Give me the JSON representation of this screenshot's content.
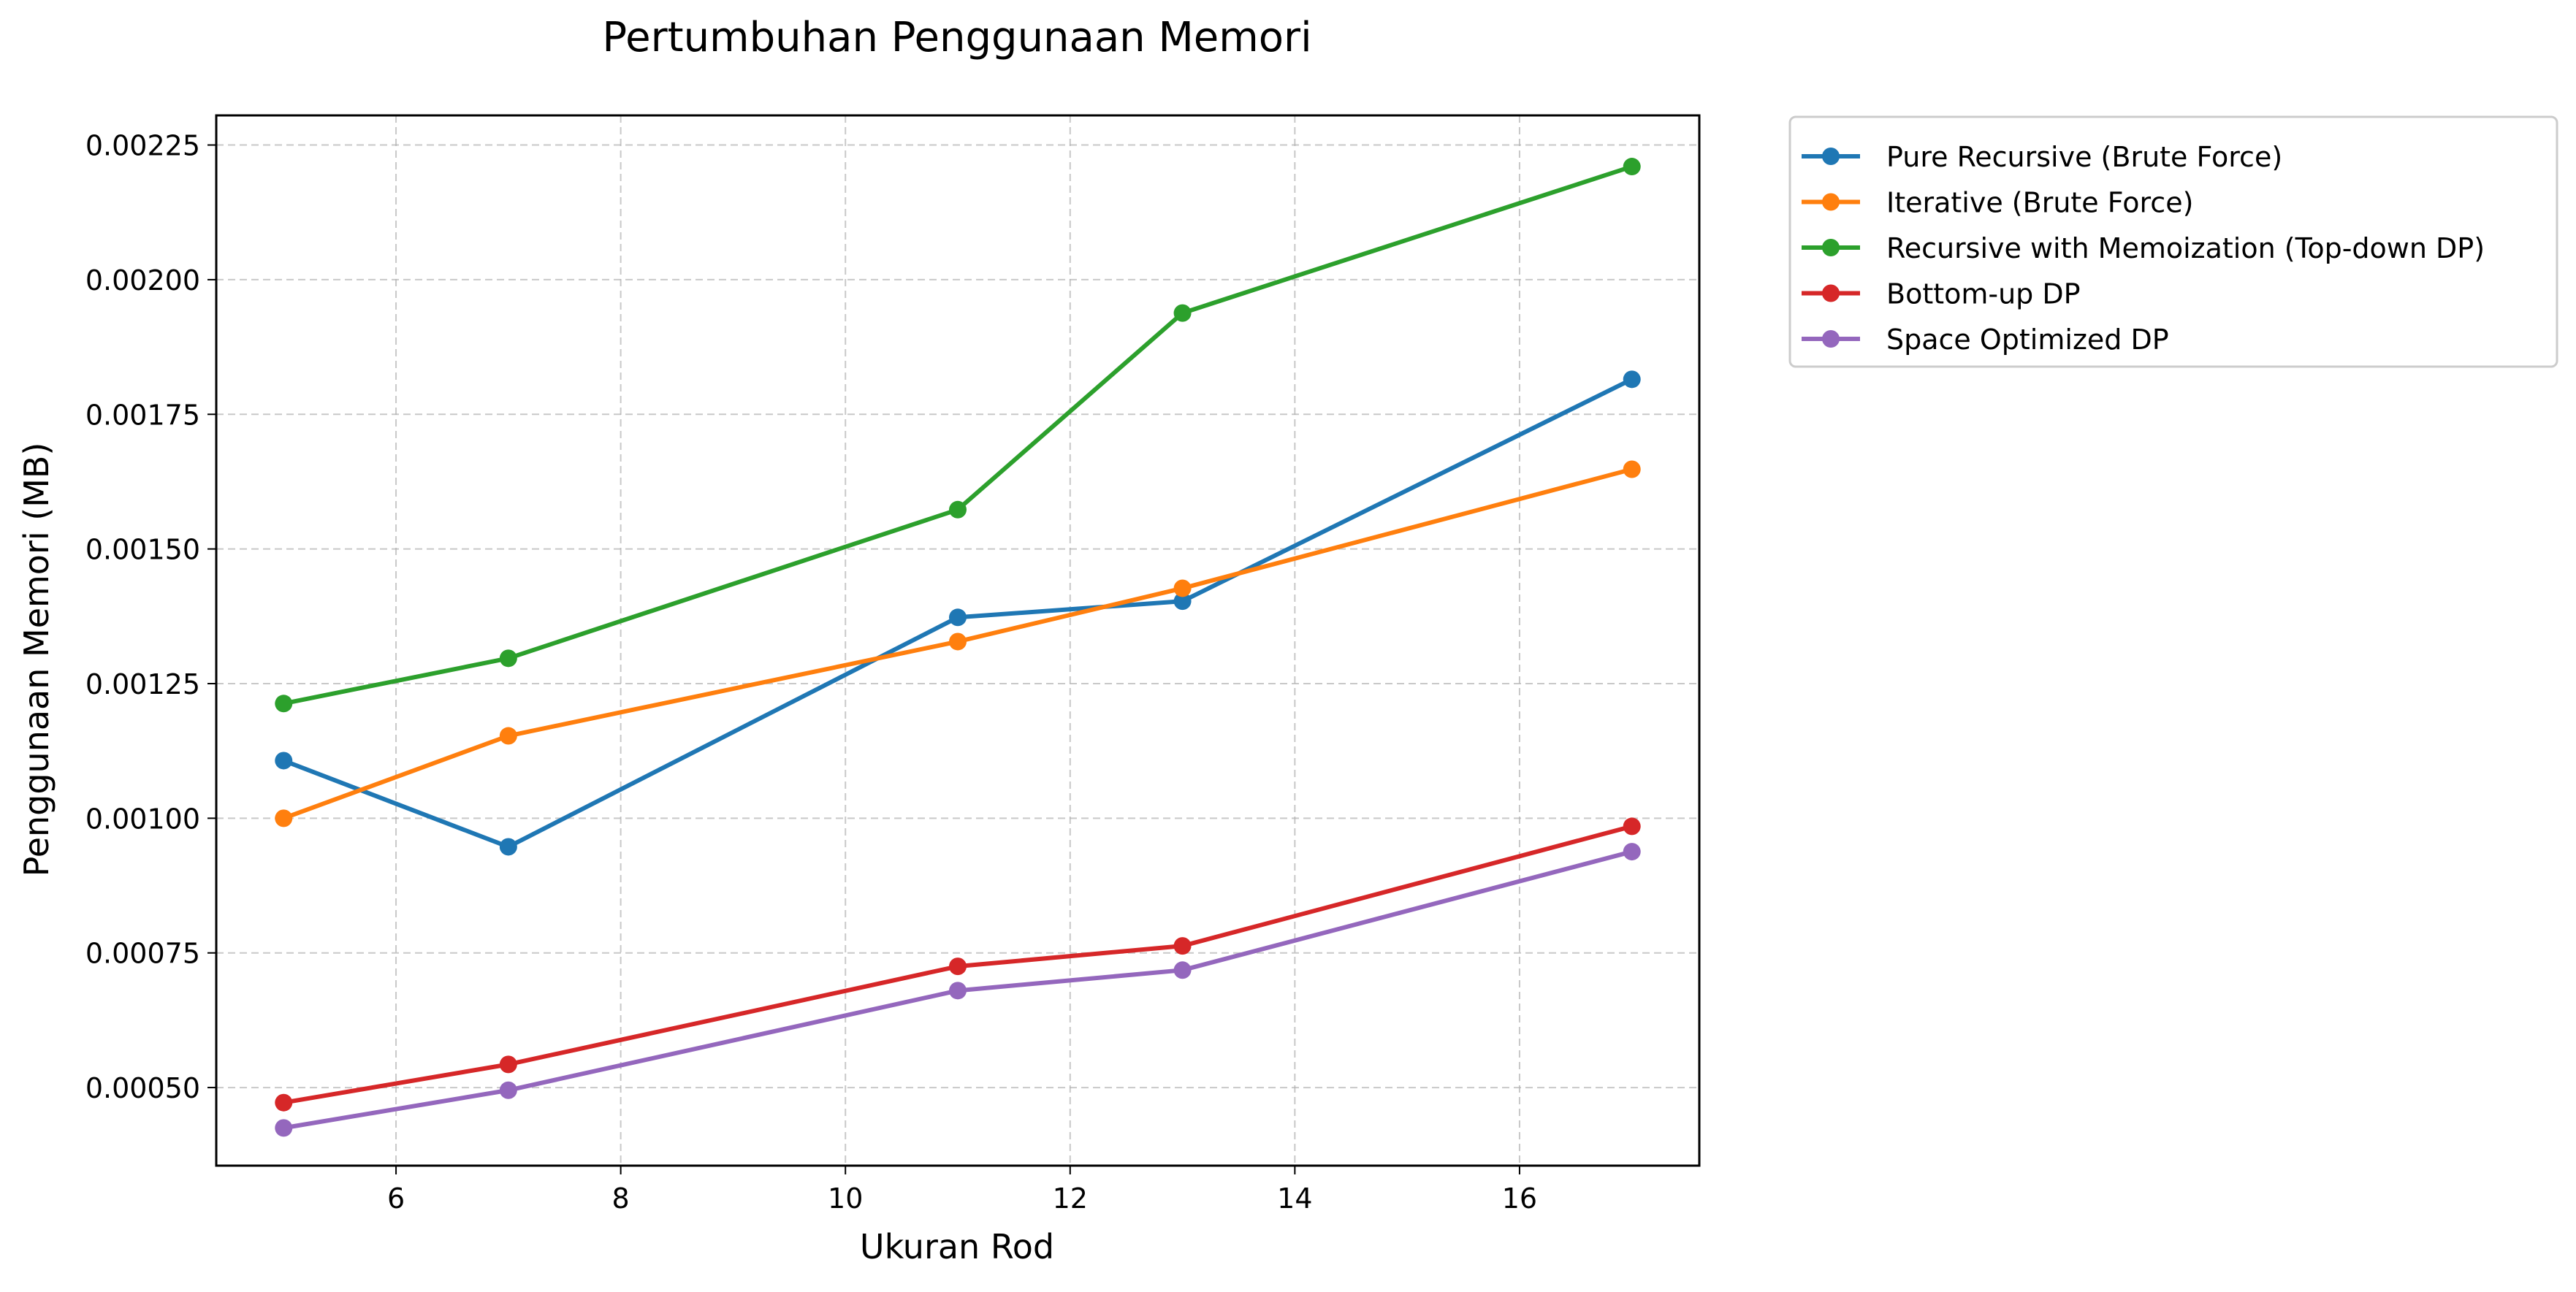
{
  "chart_data": {
    "type": "line",
    "title": "Pertumbuhan Penggunaan Memori",
    "xlabel": "Ukuran Rod",
    "ylabel": "Penggunaan Memori (MB)",
    "x": [
      5,
      7,
      11,
      13,
      17
    ],
    "xlim": [
      4.4,
      17.6
    ],
    "ylim": [
      0.000355,
      0.002305
    ],
    "xticks": [
      6,
      8,
      10,
      12,
      14,
      16
    ],
    "xtick_labels": [
      "6",
      "8",
      "10",
      "12",
      "14",
      "16"
    ],
    "yticks": [
      0.0005,
      0.00075,
      0.001,
      0.00125,
      0.0015,
      0.00175,
      0.002,
      0.00225
    ],
    "ytick_labels": [
      "0.00050",
      "0.00075",
      "0.00100",
      "0.00125",
      "0.00150",
      "0.00175",
      "0.00200",
      "0.00225"
    ],
    "grid": true,
    "grid_style": "dashed",
    "legend_position": "outside-top-right",
    "series": [
      {
        "name": "Pure Recursive (Brute Force)",
        "color": "#1f77b4",
        "values": [
          0.001107,
          0.000947,
          0.001373,
          0.001403,
          0.001815
        ]
      },
      {
        "name": "Iterative (Brute Force)",
        "color": "#ff7f0e",
        "values": [
          0.001,
          0.001153,
          0.001328,
          0.001427,
          0.001648
        ]
      },
      {
        "name": "Recursive with Memoization (Top-down DP)",
        "color": "#2ca02c",
        "values": [
          0.001213,
          0.001297,
          0.001573,
          0.001938,
          0.00221
        ]
      },
      {
        "name": "Bottom-up DP",
        "color": "#d62728",
        "values": [
          0.000472,
          0.000543,
          0.000725,
          0.000763,
          0.000985
        ]
      },
      {
        "name": "Space Optimized DP",
        "color": "#9467bd",
        "values": [
          0.000425,
          0.000495,
          0.00068,
          0.000718,
          0.000938
        ]
      }
    ]
  }
}
